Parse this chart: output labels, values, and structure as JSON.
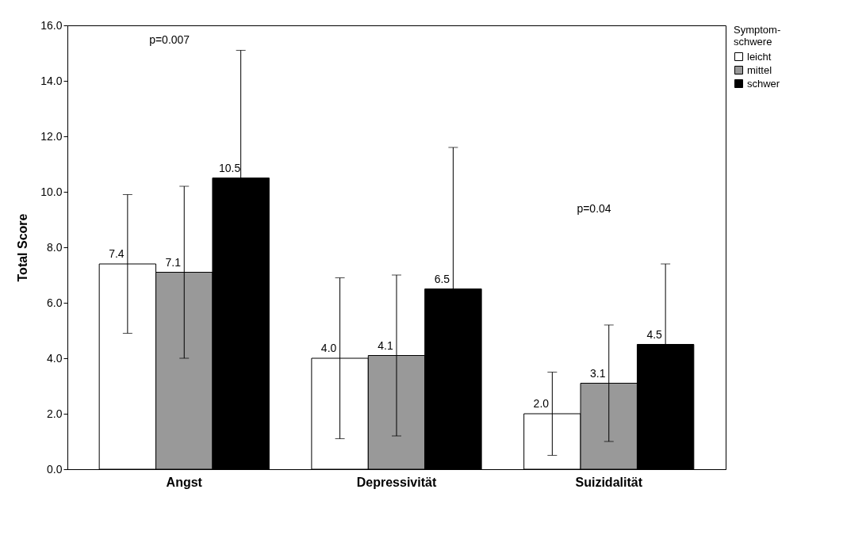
{
  "chart_data": {
    "type": "bar",
    "ylabel": "Total Score",
    "legend_title": "Symptom-schwere",
    "categories": [
      "Angst",
      "Depressivität",
      "Suizidalität"
    ],
    "series": [
      {
        "name": "leicht",
        "color": "#ffffff",
        "values": [
          7.4,
          4.0,
          2.0
        ],
        "errors": [
          2.5,
          2.9,
          1.5
        ],
        "value_labels": [
          "7.4",
          "4.0",
          "2.0"
        ]
      },
      {
        "name": "mittel",
        "color": "#999999",
        "values": [
          7.1,
          4.1,
          3.1
        ],
        "errors": [
          3.1,
          2.9,
          2.1
        ],
        "value_labels": [
          "7.1",
          "4.1",
          "3.1"
        ]
      },
      {
        "name": "schwer",
        "color": "#000000",
        "values": [
          10.5,
          6.5,
          4.5
        ],
        "errors": [
          4.6,
          5.1,
          2.9
        ],
        "value_labels": [
          "10.5",
          "6.5",
          "4.5"
        ]
      }
    ],
    "ylim": [
      0,
      16
    ],
    "yticks": [
      {
        "value": 0,
        "label": "0.0"
      },
      {
        "value": 2,
        "label": "2.0"
      },
      {
        "value": 4,
        "label": "4.0"
      },
      {
        "value": 6,
        "label": "6.0"
      },
      {
        "value": 8,
        "label": "8.0"
      },
      {
        "value": 10,
        "label": "10.0"
      },
      {
        "value": 12,
        "label": "12.0"
      },
      {
        "value": 14,
        "label": "14.0"
      },
      {
        "value": 16,
        "label": "16.0"
      }
    ],
    "grid": false,
    "legend": "top right",
    "annotations": [
      "p=0.007",
      "p=0.04"
    ]
  }
}
